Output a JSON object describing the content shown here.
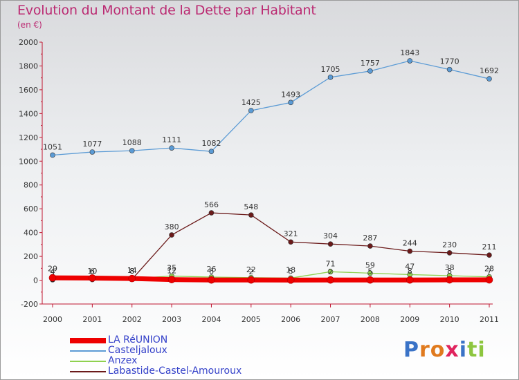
{
  "title": "Evolution du Montant de la Dette par Habitant",
  "unit": "(en €)",
  "logo": {
    "text": "ProXiti",
    "letters": [
      "P",
      "r",
      "o",
      "x",
      "i",
      "t",
      "i"
    ],
    "colors": [
      "#3a73c7",
      "#e07a1e",
      "#e07a1e",
      "#e0245e",
      "#3a73c7",
      "#8dc63f",
      "#8dc63f"
    ]
  },
  "chart_data": {
    "type": "line",
    "title": "Evolution du Montant de la Dette par Habitant",
    "subtitle": "(en €)",
    "xlabel": "",
    "ylabel": "",
    "categories": [
      "2000",
      "2001",
      "2002",
      "2003",
      "2004",
      "2005",
      "2006",
      "2007",
      "2008",
      "2009",
      "2010",
      "2011"
    ],
    "ylim": [
      -200,
      2000
    ],
    "yticks": [
      -200,
      0,
      200,
      400,
      600,
      800,
      1000,
      1200,
      1400,
      1600,
      1800,
      2000
    ],
    "grid": false,
    "legend_position": "bottom-left",
    "series": [
      {
        "name": "LA RéUNION",
        "color": "#ee0000",
        "values": [
          20,
          18,
          14,
          5,
          2,
          2,
          1,
          2,
          2,
          2,
          3,
          3
        ],
        "labels": [
          "20",
          "18",
          "14",
          "5",
          "2",
          "2",
          "1",
          "2",
          "2",
          "2",
          "3",
          "3"
        ],
        "show_labels": false,
        "thick": true
      },
      {
        "name": "Casteljaloux",
        "color": "#5b9bd5",
        "values": [
          1051,
          1077,
          1088,
          1111,
          1082,
          1425,
          1493,
          1705,
          1757,
          1843,
          1770,
          1692
        ],
        "labels": [
          "1051",
          "1077",
          "1088",
          "1111",
          "1082",
          "1425",
          "1493",
          "1705",
          "1757",
          "1843",
          "1770",
          "1692"
        ],
        "show_labels": true
      },
      {
        "name": "Anzex",
        "color": "#8fd14f",
        "values": [
          4,
          6,
          14,
          35,
          26,
          22,
          18,
          71,
          59,
          47,
          38,
          28
        ],
        "labels": [
          "4",
          "6",
          "14",
          "35",
          "26",
          "22",
          "18",
          "71",
          "59",
          "47",
          "38",
          "28"
        ],
        "show_labels": true
      },
      {
        "name": "Labastide-Castel-Amouroux",
        "color": "#6b1a1a",
        "values": [
          29,
          10,
          8,
          380,
          566,
          548,
          321,
          304,
          287,
          244,
          230,
          211
        ],
        "labels": [
          "29",
          "10",
          "8",
          "380",
          "566",
          "548",
          "321",
          "304",
          "287",
          "244",
          "230",
          "211"
        ],
        "show_labels": true
      },
      {
        "name": "",
        "color": "#444444",
        "values": [
          4,
          6,
          8,
          12,
          6,
          2,
          5,
          2,
          5,
          8,
          8,
          7
        ],
        "labels": [
          "4",
          "6",
          "8",
          "12",
          "6",
          "2",
          "5",
          "2",
          "5",
          "8",
          "8",
          "7"
        ],
        "show_labels": true,
        "overlay_only": true
      }
    ]
  }
}
